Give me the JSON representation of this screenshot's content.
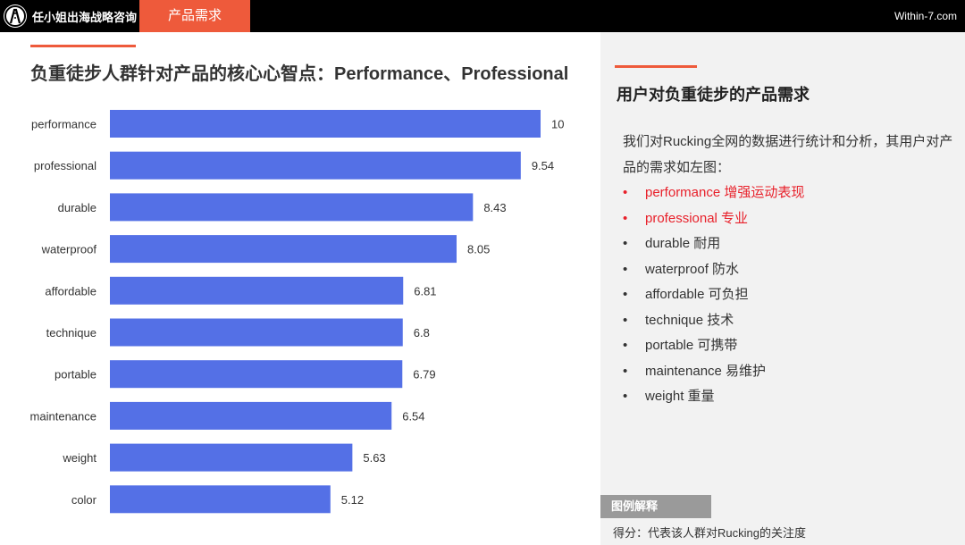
{
  "header": {
    "brand": "任小姐出海战略咨询",
    "section_tab": "产品需求",
    "site": "Within-7.com",
    "logo_icon": "road-logo-icon"
  },
  "chart_data": {
    "type": "bar",
    "orientation": "horizontal",
    "title": "负重徒步人群针对产品的核心心智点：Performance、Professional",
    "categories": [
      "performance",
      "professional",
      "durable",
      "waterproof",
      "affordable",
      "technique",
      "portable",
      "maintenance",
      "weight",
      "color"
    ],
    "values": [
      10,
      9.54,
      8.43,
      8.05,
      6.81,
      6.8,
      6.79,
      6.54,
      5.63,
      5.12
    ],
    "value_labels": [
      "10",
      "9.54",
      "8.43",
      "8.05",
      "6.81",
      "6.8",
      "6.79",
      "6.54",
      "5.63",
      "5.12"
    ],
    "xlim": [
      0,
      10
    ],
    "grid": false,
    "bar_color": "#5470e6"
  },
  "panel": {
    "title": "用户对负重徒步的产品需求",
    "intro": "我们对Rucking全网的数据进行统计和分析，其用户对产品的需求如左图：",
    "items": [
      {
        "text": "performance 增强运动表现",
        "highlight": true
      },
      {
        "text": "professional 专业",
        "highlight": true
      },
      {
        "text": "durable 耐用",
        "highlight": false
      },
      {
        "text": "waterproof 防水",
        "highlight": false
      },
      {
        "text": "affordable 可负担",
        "highlight": false
      },
      {
        "text": "technique 技术",
        "highlight": false
      },
      {
        "text": "portable 可携带",
        "highlight": false
      },
      {
        "text": "maintenance 易维护",
        "highlight": false
      },
      {
        "text": "weight 重量",
        "highlight": false
      }
    ],
    "bullet": "•",
    "legend_title": "图例解释",
    "legend_desc": "得分：代表该人群对Rucking的关注度"
  },
  "colors": {
    "accent": "#ee5a3b",
    "highlight_text": "#e8212b",
    "topbar": "#000000",
    "panel_bg": "#f2f2f2"
  }
}
